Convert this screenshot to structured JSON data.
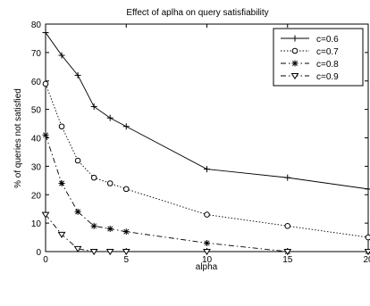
{
  "chart_data": {
    "type": "line",
    "title": "Effect of aplha on query satisfiability",
    "xlabel": "alpha",
    "ylabel": "% of queries not satisfied",
    "xlim": [
      0,
      20
    ],
    "ylim": [
      0,
      80
    ],
    "xticks": [
      0,
      5,
      10,
      15,
      20
    ],
    "yticks": [
      0,
      10,
      20,
      30,
      40,
      50,
      60,
      70,
      80
    ],
    "grid": false,
    "legend_position": "top-right",
    "series": [
      {
        "name": "c=0.6",
        "marker": "plus",
        "dash": "solid",
        "x": [
          0,
          1,
          2,
          3,
          4,
          5,
          10,
          15,
          20
        ],
        "y": [
          77,
          69,
          62,
          51,
          47,
          44,
          29,
          26,
          22
        ]
      },
      {
        "name": "c=0.7",
        "marker": "circle",
        "dash": "dotted",
        "x": [
          0,
          1,
          2,
          3,
          4,
          5,
          10,
          15,
          20
        ],
        "y": [
          59,
          44,
          32,
          26,
          24,
          22,
          13,
          9,
          5
        ]
      },
      {
        "name": "c=0.8",
        "marker": "star",
        "dash": "dashdot",
        "x": [
          0,
          1,
          2,
          3,
          4,
          5,
          10,
          15,
          20
        ],
        "y": [
          41,
          24,
          14,
          9,
          8,
          7,
          3,
          0,
          0
        ]
      },
      {
        "name": "c=0.9",
        "marker": "triangle-down",
        "dash": "dashdot",
        "x": [
          0,
          1,
          2,
          3,
          4,
          5,
          10,
          15,
          20
        ],
        "y": [
          13,
          6,
          1,
          0,
          0,
          0,
          0,
          0,
          0
        ]
      }
    ]
  }
}
